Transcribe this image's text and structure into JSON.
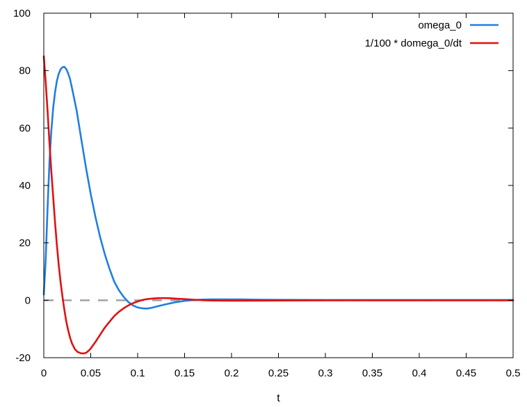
{
  "chart_data": {
    "type": "line",
    "title": "",
    "xlabel": "t",
    "ylabel": "",
    "xlim": [
      0,
      0.5
    ],
    "ylim": [
      -20,
      100
    ],
    "xticks": [
      0,
      0.05,
      0.1,
      0.15,
      0.2,
      0.25,
      0.3,
      0.35,
      0.4,
      0.45,
      0.5
    ],
    "xtick_labels": [
      "0",
      "0.05",
      "0.1",
      "0.15",
      "0.2",
      "0.25",
      "0.3",
      "0.35",
      "0.4",
      "0.45",
      "0.5"
    ],
    "yticks": [
      -20,
      0,
      20,
      40,
      60,
      80,
      100
    ],
    "ytick_labels": [
      "-20",
      "0",
      "20",
      "40",
      "60",
      "80",
      "100"
    ],
    "grid": false,
    "legend_position": "top-right",
    "zero_line": {
      "y": 0,
      "color": "#a0a0a0",
      "style": "dashed"
    },
    "series": [
      {
        "name": "omega_0",
        "color": "#1f7fe0",
        "x": [
          0,
          0.002,
          0.004,
          0.006,
          0.008,
          0.01,
          0.012,
          0.014,
          0.016,
          0.018,
          0.02,
          0.022,
          0.024,
          0.026,
          0.028,
          0.03,
          0.035,
          0.04,
          0.045,
          0.05,
          0.055,
          0.06,
          0.065,
          0.07,
          0.075,
          0.08,
          0.085,
          0.09,
          0.095,
          0.1,
          0.105,
          0.11,
          0.115,
          0.12,
          0.13,
          0.14,
          0.15,
          0.16,
          0.17,
          0.18,
          0.19,
          0.2,
          0.21,
          0.22,
          0.25,
          0.3,
          0.35,
          0.4,
          0.45,
          0.5
        ],
        "y": [
          2,
          14,
          32,
          48,
          59,
          67,
          72.5,
          76.5,
          79,
          80.5,
          81.2,
          81.3,
          80.5,
          79,
          77,
          74,
          66,
          56,
          46,
          37,
          29,
          22,
          16,
          11,
          6.5,
          3.5,
          1.2,
          -0.6,
          -1.8,
          -2.5,
          -2.8,
          -2.9,
          -2.6,
          -2.2,
          -1.4,
          -0.7,
          -0.2,
          0.1,
          0.25,
          0.3,
          0.3,
          0.32,
          0.3,
          0.25,
          0.15,
          0.1,
          0.1,
          0.1,
          0.1,
          0.1
        ]
      },
      {
        "name": "1/100 * domega_0/dt",
        "color": "#e01010",
        "x": [
          0,
          0.002,
          0.004,
          0.006,
          0.008,
          0.01,
          0.012,
          0.014,
          0.016,
          0.018,
          0.02,
          0.022,
          0.024,
          0.026,
          0.028,
          0.03,
          0.033,
          0.036,
          0.04,
          0.043,
          0.045,
          0.048,
          0.05,
          0.055,
          0.06,
          0.065,
          0.07,
          0.075,
          0.08,
          0.085,
          0.09,
          0.095,
          0.1,
          0.105,
          0.11,
          0.115,
          0.12,
          0.125,
          0.13,
          0.135,
          0.14,
          0.15,
          0.16,
          0.17,
          0.18,
          0.2,
          0.25,
          0.3,
          0.4,
          0.5
        ],
        "y": [
          85,
          76,
          66,
          55,
          45,
          36,
          27,
          19,
          12,
          6,
          1,
          -3.5,
          -7.5,
          -10.5,
          -13,
          -15,
          -17,
          -18,
          -18.5,
          -18.5,
          -18.3,
          -17.5,
          -16.8,
          -14.5,
          -12,
          -9.5,
          -7.5,
          -5.5,
          -4,
          -2.8,
          -1.8,
          -1,
          -0.4,
          0.1,
          0.4,
          0.6,
          0.7,
          0.75,
          0.75,
          0.7,
          0.6,
          0.4,
          0.2,
          0,
          -0.1,
          -0.15,
          -0.1,
          -0.05,
          -0.05,
          -0.05
        ]
      }
    ]
  }
}
